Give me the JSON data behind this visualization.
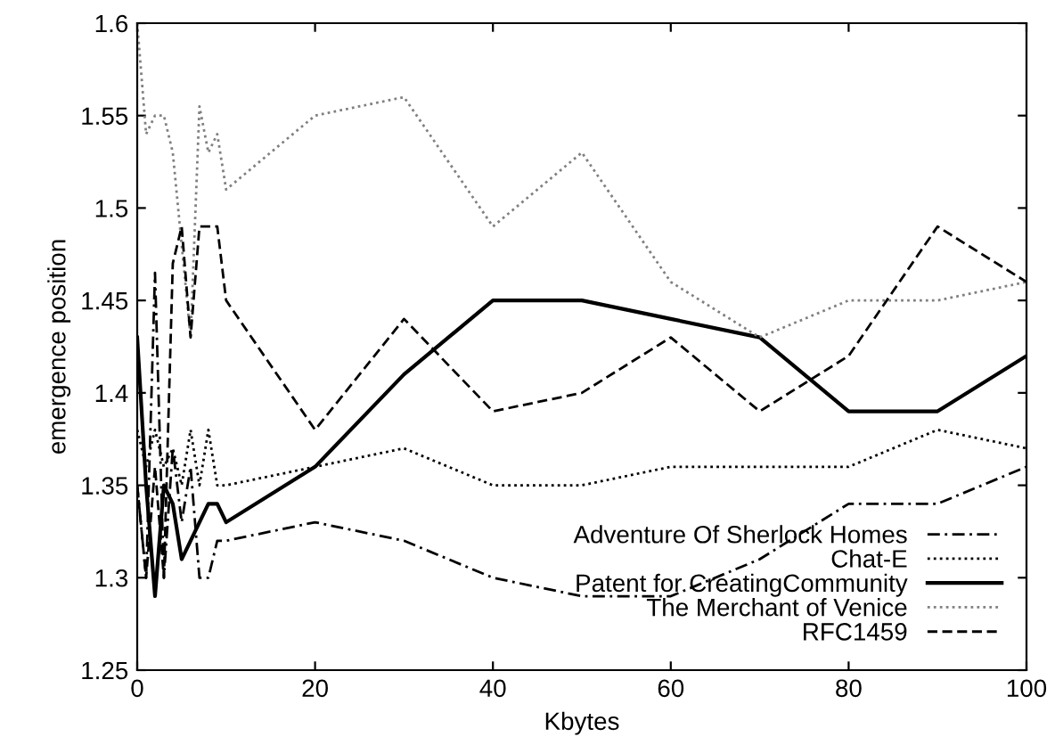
{
  "chart_data": {
    "type": "line",
    "xlabel": "Kbytes",
    "ylabel": "emergence position",
    "xlim": [
      0,
      100
    ],
    "ylim": [
      1.25,
      1.6
    ],
    "xticks": [
      0,
      20,
      40,
      60,
      80,
      100
    ],
    "yticks": [
      1.25,
      1.3,
      1.35,
      1.4,
      1.45,
      1.5,
      1.55,
      1.6
    ],
    "grid": false,
    "legend": "bottom right",
    "marker": "none",
    "x": [
      0,
      1,
      2,
      3,
      4,
      5,
      6,
      7,
      8,
      9,
      10,
      20,
      30,
      40,
      50,
      60,
      70,
      80,
      90,
      100
    ],
    "series": [
      {
        "name": "Adventure Of Sherlock Homes",
        "color": "#000000",
        "line_style": "dashdot",
        "values": [
          1.35,
          1.3,
          1.465,
          1.3,
          1.37,
          1.33,
          1.36,
          1.3,
          1.3,
          1.32,
          1.32,
          1.33,
          1.32,
          1.3,
          1.29,
          1.29,
          1.31,
          1.34,
          1.34,
          1.36
        ]
      },
      {
        "name": "Chat-E",
        "color": "#000000",
        "line_style": "dotted",
        "values": [
          1.38,
          1.36,
          1.38,
          1.36,
          1.37,
          1.35,
          1.38,
          1.35,
          1.38,
          1.35,
          1.35,
          1.36,
          1.37,
          1.35,
          1.35,
          1.36,
          1.36,
          1.36,
          1.38,
          1.37
        ]
      },
      {
        "name": "Patent for CreatingCommunity",
        "color": "#000000",
        "line_style": "solid",
        "values": [
          1.43,
          1.35,
          1.29,
          1.35,
          1.34,
          1.31,
          1.32,
          1.33,
          1.34,
          1.34,
          1.33,
          1.36,
          1.41,
          1.45,
          1.45,
          1.44,
          1.43,
          1.39,
          1.39,
          1.42
        ]
      },
      {
        "name": "The Merchant of Venice",
        "color": "#808080",
        "line_style": "dotted",
        "values": [
          1.6,
          1.54,
          1.55,
          1.55,
          1.53,
          1.48,
          1.43,
          1.555,
          1.53,
          1.54,
          1.51,
          1.55,
          1.56,
          1.49,
          1.53,
          1.46,
          1.43,
          1.45,
          1.45,
          1.46
        ]
      },
      {
        "name": "RFC1459",
        "color": "#000000",
        "line_style": "dashed",
        "values": [
          1.35,
          1.3,
          1.36,
          1.3,
          1.47,
          1.49,
          1.43,
          1.49,
          1.49,
          1.49,
          1.45,
          1.38,
          1.44,
          1.39,
          1.4,
          1.43,
          1.39,
          1.42,
          1.49,
          1.46
        ]
      }
    ]
  }
}
